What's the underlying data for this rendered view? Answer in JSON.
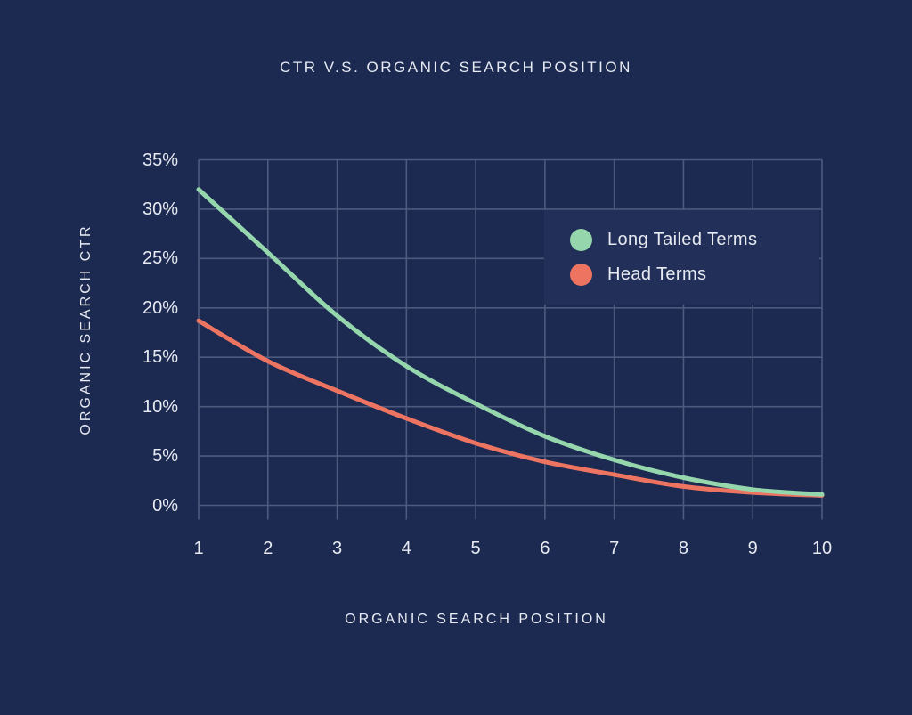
{
  "colors": {
    "background": "#1c2a52",
    "legend_panel": "#223059",
    "gridline": "#4d5a7e",
    "text": "#e7eaf1",
    "long_tailed_terms": "#95d6ac",
    "head_terms": "#ee7462"
  },
  "chart_data": {
    "type": "line",
    "title": "CTR V.S. ORGANIC SEARCH POSITION",
    "xlabel": "ORGANIC SEARCH POSITION",
    "ylabel": "ORGANIC SEARCH CTR",
    "x": [
      1,
      2,
      3,
      4,
      5,
      6,
      7,
      8,
      9,
      10
    ],
    "xlim": [
      1,
      10
    ],
    "ylim": [
      0,
      35
    ],
    "y_ticks": [
      {
        "value": 0,
        "label": "0%"
      },
      {
        "value": 5,
        "label": "5%"
      },
      {
        "value": 10,
        "label": "10%"
      },
      {
        "value": 15,
        "label": "15%"
      },
      {
        "value": 20,
        "label": "20%"
      },
      {
        "value": 25,
        "label": "25%"
      },
      {
        "value": 30,
        "label": "30%"
      },
      {
        "value": 35,
        "label": "35%"
      }
    ],
    "grid": true,
    "legend_position": "upper right",
    "series": [
      {
        "name": "Long Tailed Terms",
        "color": "#95d6ac",
        "values": [
          32,
          25.6,
          19.2,
          14.1,
          10.3,
          7.0,
          4.6,
          2.8,
          1.6,
          1.1
        ]
      },
      {
        "name": "Head Terms",
        "color": "#ee7462",
        "values": [
          18.7,
          14.6,
          11.6,
          8.8,
          6.3,
          4.4,
          3.1,
          1.9,
          1.3,
          1.0
        ]
      }
    ]
  }
}
